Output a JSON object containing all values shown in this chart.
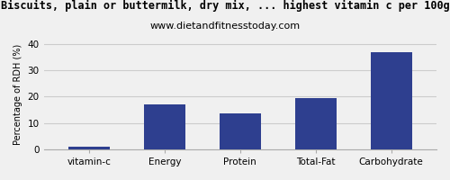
{
  "title": "Biscuits, plain or buttermilk, dry mix, ... highest vitamin c per 100g",
  "subtitle": "www.dietandfitnesstoday.com",
  "categories": [
    "vitamin-c",
    "Energy",
    "Protein",
    "Total-Fat",
    "Carbohydrate"
  ],
  "values": [
    1.0,
    17.0,
    13.5,
    19.5,
    37.0
  ],
  "bar_color": "#2e3f8f",
  "ylabel": "Percentage of RDH (%)",
  "ylim": [
    0,
    42
  ],
  "yticks": [
    0,
    10,
    20,
    30,
    40
  ],
  "fig_bg_color": "#f0f0f0",
  "plot_bg_color": "#f0f0f0",
  "grid_color": "#cccccc",
  "title_fontsize": 8.5,
  "subtitle_fontsize": 8,
  "ylabel_fontsize": 7,
  "xlabel_fontsize": 7.5,
  "tick_fontsize": 7.5
}
